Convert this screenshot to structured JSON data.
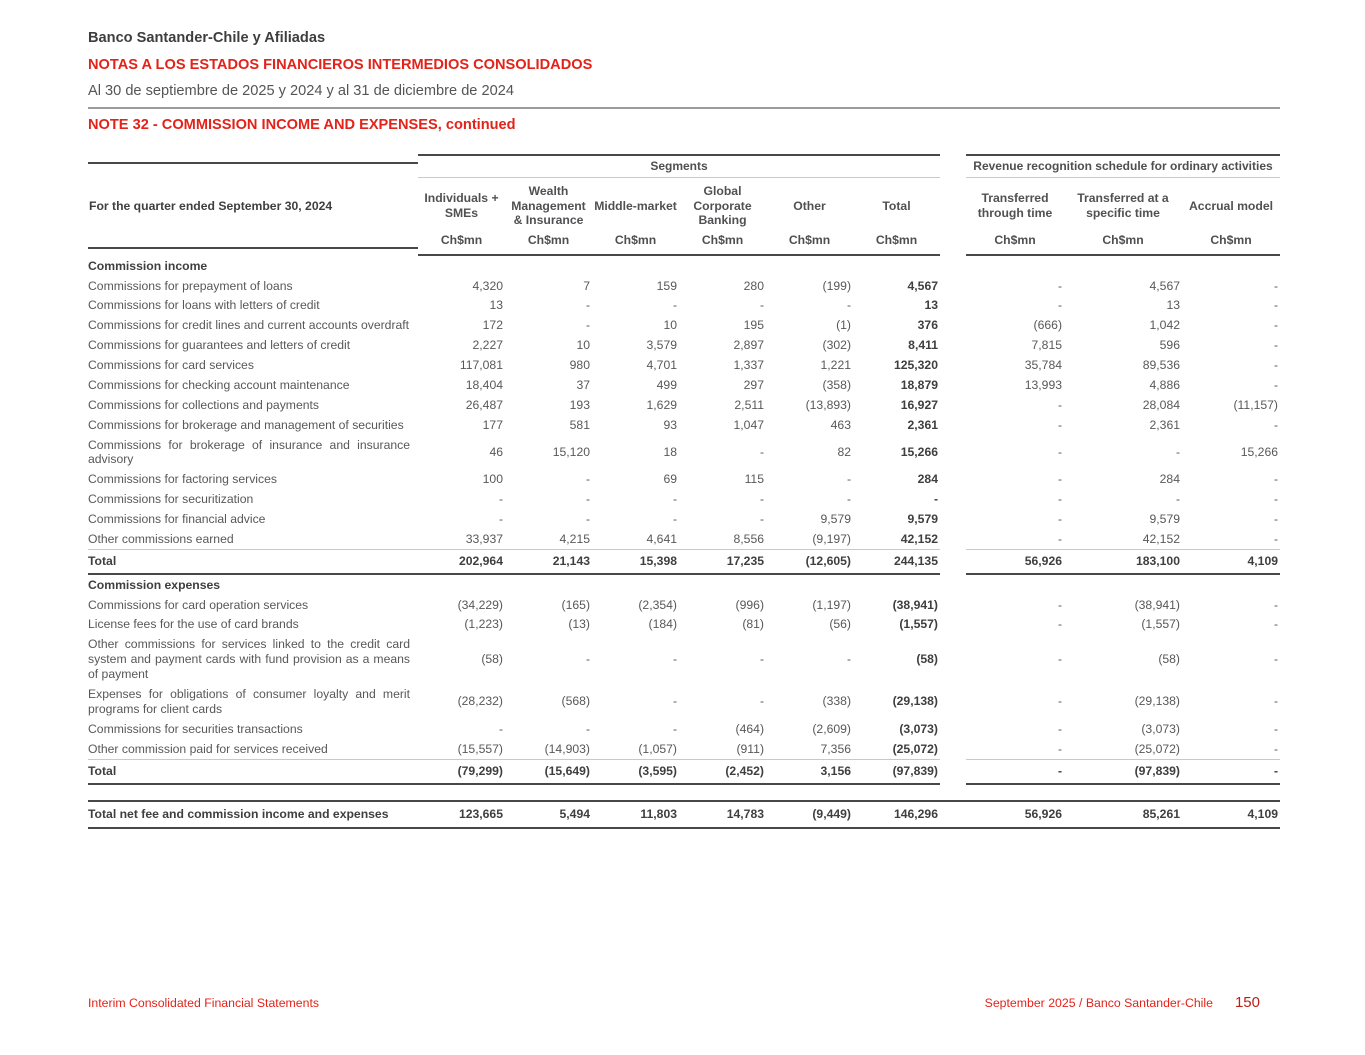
{
  "colors": {
    "brand_red": "#e32219",
    "page_number_red": "#bb2018",
    "dark_text": "#3f3f41",
    "body_text": "#58585a"
  },
  "header": {
    "company": "Banco Santander-Chile y Afiliadas",
    "title": "NOTAS A LOS ESTADOS FINANCIEROS INTERMEDIOS CONSOLIDADOS",
    "subtitle": "Al 30 de septiembre de 2025 y 2024 y al 31 de diciembre de 2024",
    "note_title": "NOTE 32 - COMMISSION INCOME AND EXPENSES, continued"
  },
  "table": {
    "row_header": "For the quarter ended September 30, 2024",
    "groups": [
      {
        "label": "Segments",
        "span": 6
      },
      {
        "label": "Revenue recognition schedule for ordinary activities",
        "span": 3
      }
    ],
    "columns": [
      "Individuals + SMEs",
      "Wealth Management & Insurance",
      "Middle-market",
      "Global Corporate Banking",
      "Other",
      "Total",
      "Transferred through time",
      "Transferred at a specific time",
      "Accrual model"
    ],
    "unit": "Ch$mn",
    "rows": [
      {
        "type": "section",
        "label": "Commission income"
      },
      {
        "label": "Commissions for prepayment of loans",
        "values": [
          "4,320",
          "7",
          "159",
          "280",
          "(199)",
          "4,567",
          "-",
          "4,567",
          "-"
        ]
      },
      {
        "label": "Commissions for loans with letters of credit",
        "values": [
          "13",
          "-",
          "-",
          "-",
          "-",
          "13",
          "-",
          "13",
          "-"
        ]
      },
      {
        "label": "Commissions for credit lines and current accounts overdraft",
        "values": [
          "172",
          "-",
          "10",
          "195",
          "(1)",
          "376",
          "(666)",
          "1,042",
          "-"
        ]
      },
      {
        "label": "Commissions for guarantees and letters of credit",
        "values": [
          "2,227",
          "10",
          "3,579",
          "2,897",
          "(302)",
          "8,411",
          "7,815",
          "596",
          "-"
        ]
      },
      {
        "label": "Commissions for card services",
        "values": [
          "117,081",
          "980",
          "4,701",
          "1,337",
          "1,221",
          "125,320",
          "35,784",
          "89,536",
          "-"
        ]
      },
      {
        "label": "Commissions for checking account maintenance",
        "values": [
          "18,404",
          "37",
          "499",
          "297",
          "(358)",
          "18,879",
          "13,993",
          "4,886",
          "-"
        ]
      },
      {
        "label": "Commissions for collections and payments",
        "values": [
          "26,487",
          "193",
          "1,629",
          "2,511",
          "(13,893)",
          "16,927",
          "-",
          "28,084",
          "(11,157)"
        ]
      },
      {
        "label": "Commissions for brokerage and management of securities",
        "values": [
          "177",
          "581",
          "93",
          "1,047",
          "463",
          "2,361",
          "-",
          "2,361",
          "-"
        ]
      },
      {
        "label": "Commissions for brokerage of insurance and insurance advisory",
        "values": [
          "46",
          "15,120",
          "18",
          "-",
          "82",
          "15,266",
          "-",
          "-",
          "15,266"
        ]
      },
      {
        "label": "Commissions for factoring services",
        "values": [
          "100",
          "-",
          "69",
          "115",
          "-",
          "284",
          "-",
          "284",
          "-"
        ]
      },
      {
        "label": "Commissions for securitization",
        "values": [
          "-",
          "-",
          "-",
          "-",
          "-",
          "-",
          "-",
          "-",
          "-"
        ]
      },
      {
        "label": "Commissions for financial advice",
        "values": [
          "-",
          "-",
          "-",
          "-",
          "9,579",
          "9,579",
          "-",
          "9,579",
          "-"
        ]
      },
      {
        "label": "Other commissions earned",
        "values": [
          "33,937",
          "4,215",
          "4,641",
          "8,556",
          "(9,197)",
          "42,152",
          "-",
          "42,152",
          "-"
        ]
      },
      {
        "type": "total",
        "label": "Total",
        "values": [
          "202,964",
          "21,143",
          "15,398",
          "17,235",
          "(12,605)",
          "244,135",
          "56,926",
          "183,100",
          "4,109"
        ]
      },
      {
        "type": "section",
        "label": "Commission expenses"
      },
      {
        "label": "Commissions for card operation services",
        "values": [
          "(34,229)",
          "(165)",
          "(2,354)",
          "(996)",
          "(1,197)",
          "(38,941)",
          "-",
          "(38,941)",
          "-"
        ]
      },
      {
        "label": "License fees for the use of card brands",
        "values": [
          "(1,223)",
          "(13)",
          "(184)",
          "(81)",
          "(56)",
          "(1,557)",
          "-",
          "(1,557)",
          "-"
        ]
      },
      {
        "label": "Other commissions for services linked to the credit card system and payment cards with fund provision as a means of payment",
        "values": [
          "(58)",
          "-",
          "-",
          "-",
          "-",
          "(58)",
          "-",
          "(58)",
          "-"
        ]
      },
      {
        "label": "Expenses for obligations of consumer loyalty and merit programs for client cards",
        "values": [
          "(28,232)",
          "(568)",
          "-",
          "-",
          "(338)",
          "(29,138)",
          "-",
          "(29,138)",
          "-"
        ]
      },
      {
        "label": "Commissions for securities transactions",
        "values": [
          "-",
          "-",
          "-",
          "(464)",
          "(2,609)",
          "(3,073)",
          "-",
          "(3,073)",
          "-"
        ]
      },
      {
        "label": "Other commission paid for services received",
        "values": [
          "(15,557)",
          "(14,903)",
          "(1,057)",
          "(911)",
          "7,356",
          "(25,072)",
          "-",
          "(25,072)",
          "-"
        ]
      },
      {
        "type": "total",
        "label": "Total",
        "values": [
          "(79,299)",
          "(15,649)",
          "(3,595)",
          "(2,452)",
          "3,156",
          "(97,839)",
          "-",
          "(97,839)",
          "-"
        ]
      },
      {
        "type": "grand",
        "label": "Total net fee and commission income and expenses",
        "values": [
          "123,665",
          "5,494",
          "11,803",
          "14,783",
          "(9,449)",
          "146,296",
          "56,926",
          "85,261",
          "4,109"
        ]
      }
    ]
  },
  "footer": {
    "left": "Interim Consolidated Financial Statements",
    "right_date": "September 2025 / ",
    "right_company": "Banco Santander-Chile",
    "page_number": "150"
  }
}
